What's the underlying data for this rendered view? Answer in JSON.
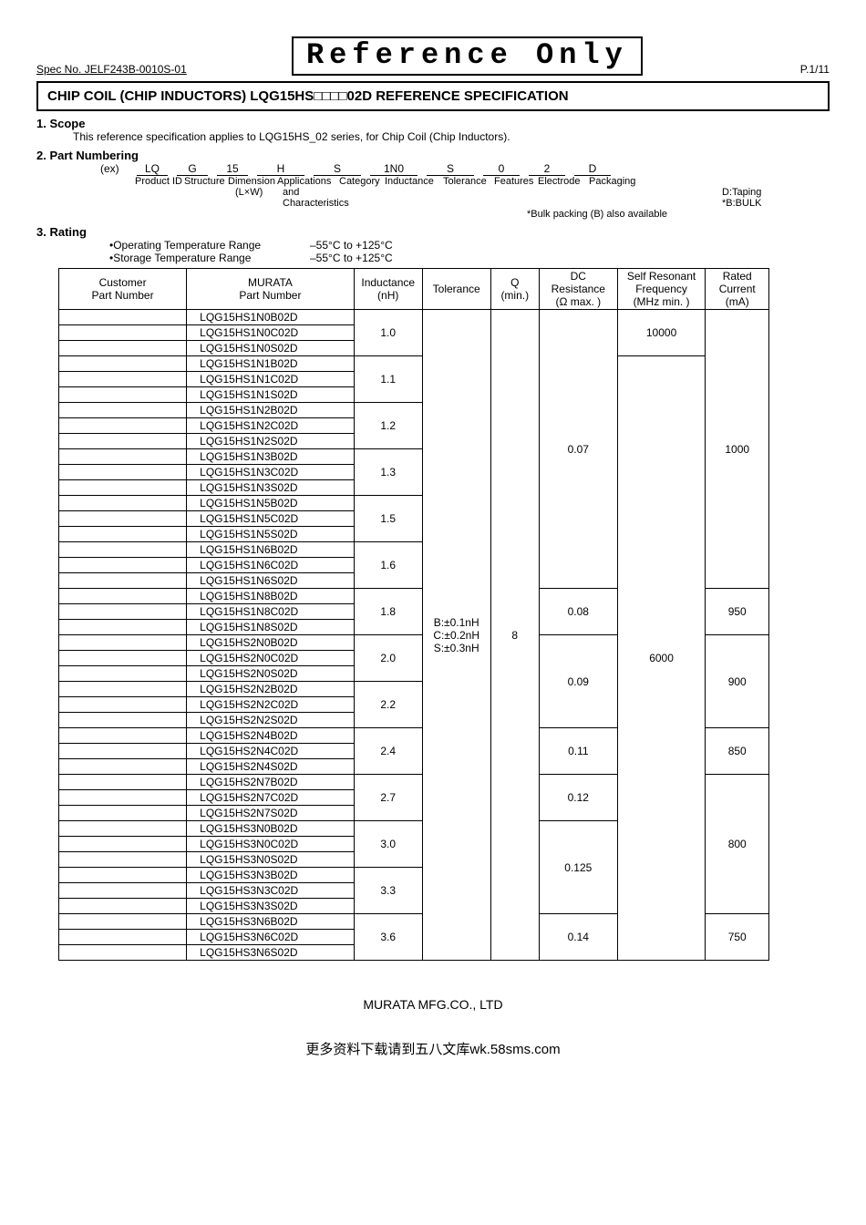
{
  "spec_no": "Spec No. JELF243B-0010S-01",
  "reference_only": "Reference Only",
  "page_indicator": "P.1/11",
  "title": "CHIP COIL (CHIP INDUCTORS)  LQG15HS□□□□02D  REFERENCE SPECIFICATION",
  "scope": {
    "header": "1. Scope",
    "text": "This reference specification applies to LQG15HS_02 series, for Chip Coil (Chip Inductors)."
  },
  "part_numbering": {
    "header": "2. Part Numbering",
    "ex": "(ex)",
    "segs": [
      "LQ",
      "G",
      "15",
      "H",
      "S",
      "1N0",
      "S",
      "0",
      "2",
      "D"
    ],
    "labels": [
      "Product ID",
      "Structure",
      "Dimension",
      "Applications",
      "Category",
      "Inductance",
      "Tolerance",
      "Features",
      "Electrode",
      "Packaging"
    ],
    "sub_lxw": "(L×W)",
    "sub_and": "and",
    "sub_char": "Characteristics",
    "d_taping": "D:Taping",
    "b_bulk": "*B:BULK",
    "bulk_note": "*Bulk packing (B) also available"
  },
  "rating": {
    "header": "3. Rating",
    "op_label": "•Operating Temperature Range",
    "op_val": "–55°C  to +125°C",
    "st_label": "•Storage Temperature Range",
    "st_val": "–55°C  to +125°C"
  },
  "table": {
    "columns": {
      "customer": "Customer\nPart Number",
      "murata": "MURATA\nPart Number",
      "inductance": "Inductance\n(nH)",
      "tolerance": "Tolerance",
      "q": "Q\n(min.)",
      "dc": "DC\nResistance\n(Ω max. )",
      "srf": "Self Resonant\nFrequency\n(MHz min. )",
      "current": "Rated\nCurrent\n(mA)"
    },
    "tolerance_value": "B:±0.1nH\nC:±0.2nH\nS:±0.3nH",
    "q_value": "8",
    "srf_top": "10000",
    "srf_rest": "6000",
    "groups": [
      {
        "parts": [
          "LQG15HS1N0B02D",
          "LQG15HS1N0C02D",
          "LQG15HS1N0S02D"
        ],
        "ind": "1.0"
      },
      {
        "parts": [
          "LQG15HS1N1B02D",
          "LQG15HS1N1C02D",
          "LQG15HS1N1S02D"
        ],
        "ind": "1.1"
      },
      {
        "parts": [
          "LQG15HS1N2B02D",
          "LQG15HS1N2C02D",
          "LQG15HS1N2S02D"
        ],
        "ind": "1.2"
      },
      {
        "parts": [
          "LQG15HS1N3B02D",
          "LQG15HS1N3C02D",
          "LQG15HS1N3S02D"
        ],
        "ind": "1.3"
      },
      {
        "parts": [
          "LQG15HS1N5B02D",
          "LQG15HS1N5C02D",
          "LQG15HS1N5S02D"
        ],
        "ind": "1.5"
      },
      {
        "parts": [
          "LQG15HS1N6B02D",
          "LQG15HS1N6C02D",
          "LQG15HS1N6S02D"
        ],
        "ind": "1.6"
      },
      {
        "parts": [
          "LQG15HS1N8B02D",
          "LQG15HS1N8C02D",
          "LQG15HS1N8S02D"
        ],
        "ind": "1.8"
      },
      {
        "parts": [
          "LQG15HS2N0B02D",
          "LQG15HS2N0C02D",
          "LQG15HS2N0S02D"
        ],
        "ind": "2.0"
      },
      {
        "parts": [
          "LQG15HS2N2B02D",
          "LQG15HS2N2C02D",
          "LQG15HS2N2S02D"
        ],
        "ind": "2.2"
      },
      {
        "parts": [
          "LQG15HS2N4B02D",
          "LQG15HS2N4C02D",
          "LQG15HS2N4S02D"
        ],
        "ind": "2.4"
      },
      {
        "parts": [
          "LQG15HS2N7B02D",
          "LQG15HS2N7C02D",
          "LQG15HS2N7S02D"
        ],
        "ind": "2.7"
      },
      {
        "parts": [
          "LQG15HS3N0B02D",
          "LQG15HS3N0C02D",
          "LQG15HS3N0S02D"
        ],
        "ind": "3.0"
      },
      {
        "parts": [
          "LQG15HS3N3B02D",
          "LQG15HS3N3C02D",
          "LQG15HS3N3S02D"
        ],
        "ind": "3.3"
      },
      {
        "parts": [
          "LQG15HS3N6B02D",
          "LQG15HS3N6C02D",
          "LQG15HS3N6S02D"
        ],
        "ind": "3.6"
      }
    ],
    "dc_blocks": [
      {
        "rows": 18,
        "val": "0.07"
      },
      {
        "rows": 3,
        "val": "0.08"
      },
      {
        "rows": 6,
        "val": "0.09"
      },
      {
        "rows": 3,
        "val": "0.11"
      },
      {
        "rows": 3,
        "val": "0.12"
      },
      {
        "rows": 6,
        "val": "0.125"
      },
      {
        "rows": 3,
        "val": "0.14"
      }
    ],
    "current_blocks": [
      {
        "rows": 18,
        "val": "1000"
      },
      {
        "rows": 3,
        "val": "950"
      },
      {
        "rows": 6,
        "val": "900"
      },
      {
        "rows": 3,
        "val": "850"
      },
      {
        "rows": 9,
        "val": "800"
      },
      {
        "rows": 3,
        "val": "750"
      }
    ]
  },
  "footer": "MURATA MFG.CO., LTD",
  "footer2": "更多资料下载请到五八文库wk.58sms.com"
}
